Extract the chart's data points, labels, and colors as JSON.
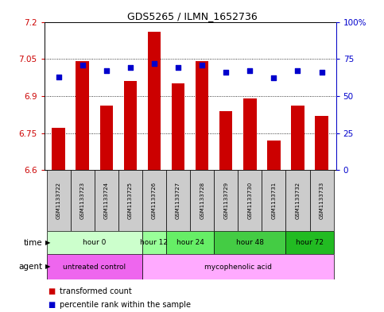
{
  "title": "GDS5265 / ILMN_1652736",
  "samples": [
    "GSM1133722",
    "GSM1133723",
    "GSM1133724",
    "GSM1133725",
    "GSM1133726",
    "GSM1133727",
    "GSM1133728",
    "GSM1133729",
    "GSM1133730",
    "GSM1133731",
    "GSM1133732",
    "GSM1133733"
  ],
  "bar_values": [
    6.77,
    7.04,
    6.86,
    6.96,
    7.16,
    6.95,
    7.04,
    6.84,
    6.89,
    6.72,
    6.86,
    6.82
  ],
  "dot_values": [
    63,
    71,
    67,
    69,
    72,
    69,
    71,
    66,
    67,
    62,
    67,
    66
  ],
  "bar_color": "#cc0000",
  "dot_color": "#0000cc",
  "ymin": 6.6,
  "ymax": 7.2,
  "yticks": [
    6.6,
    6.75,
    6.9,
    7.05,
    7.2
  ],
  "ytick_labels": [
    "6.6",
    "6.75",
    "6.9",
    "7.05",
    "7.2"
  ],
  "y2min": 0,
  "y2max": 100,
  "y2ticks": [
    0,
    25,
    50,
    75,
    100
  ],
  "y2tick_labels": [
    "0",
    "25",
    "50",
    "75",
    "100%"
  ],
  "time_groups": [
    {
      "label": "hour 0",
      "start": 0,
      "end": 4,
      "color": "#ccffcc"
    },
    {
      "label": "hour 12",
      "start": 4,
      "end": 5,
      "color": "#99ff99"
    },
    {
      "label": "hour 24",
      "start": 5,
      "end": 7,
      "color": "#66ee66"
    },
    {
      "label": "hour 48",
      "start": 7,
      "end": 10,
      "color": "#44cc44"
    },
    {
      "label": "hour 72",
      "start": 10,
      "end": 12,
      "color": "#22bb22"
    }
  ],
  "agent_groups": [
    {
      "label": "untreated control",
      "start": 0,
      "end": 4,
      "color": "#ee66ee"
    },
    {
      "label": "mycophenolic acid",
      "start": 4,
      "end": 12,
      "color": "#ffaaff"
    }
  ],
  "bg_color": "#ffffff",
  "grid_color": "#000000",
  "tick_label_color_left": "#cc0000",
  "tick_label_color_right": "#0000cc",
  "sample_bg_color": "#cccccc",
  "legend_red_label": "transformed count",
  "legend_blue_label": "percentile rank within the sample"
}
